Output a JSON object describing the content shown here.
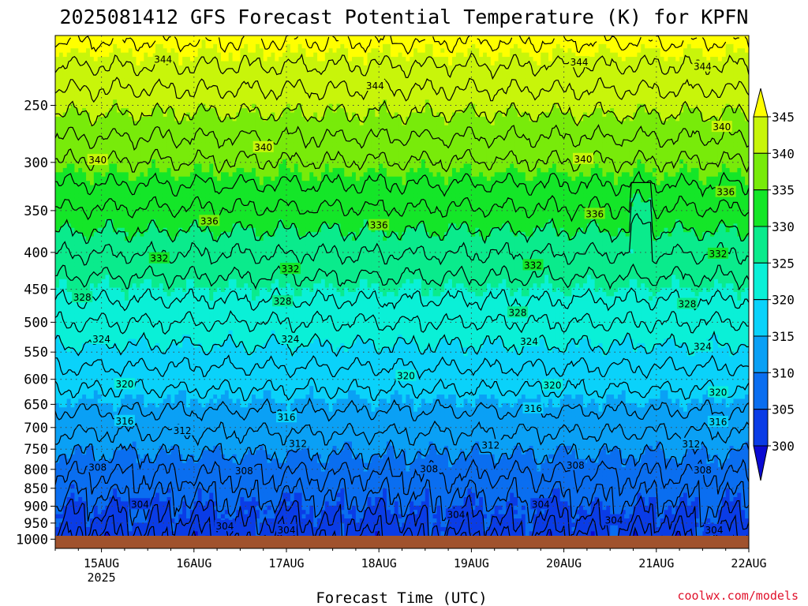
{
  "chart_data": {
    "type": "heatmap",
    "title": "2025081412 GFS Forecast Potential Temperature (K) for KPFN",
    "xlabel": "Forecast Time (UTC)",
    "ylabel": "",
    "x_ticks": [
      "15AUG",
      "16AUG",
      "17AUG",
      "18AUG",
      "19AUG",
      "20AUG",
      "21AUG",
      "22AUG"
    ],
    "x_tick_sub": "2025",
    "y_ticks": [
      250,
      300,
      350,
      400,
      450,
      500,
      550,
      600,
      650,
      700,
      750,
      800,
      850,
      900,
      950,
      1000
    ],
    "y_scale": "log",
    "y_range_hPa": [
      1030,
      200
    ],
    "x_range_hours_from_15AUG00": [
      -12,
      168
    ],
    "grid": true,
    "colorbar": {
      "levels": [
        300,
        305,
        310,
        315,
        320,
        325,
        330,
        335,
        340,
        345
      ],
      "colors": [
        "#0a0ad2",
        "#0a3ce6",
        "#0a6ef0",
        "#0aa0f5",
        "#0ad2fa",
        "#0af0d7",
        "#0aeb8c",
        "#14e628",
        "#78eb0a",
        "#c8f50a",
        "#ffff00"
      ],
      "labels": [
        "345",
        "340",
        "335",
        "330",
        "325",
        "320",
        "315",
        "310",
        "305",
        "300"
      ]
    },
    "isotherm_interval_K": 2,
    "contour_labels": [
      {
        "value": "344",
        "t": 16,
        "p": 216
      },
      {
        "value": "344",
        "t": 71,
        "p": 235
      },
      {
        "value": "344",
        "t": 124,
        "p": 218
      },
      {
        "value": "344",
        "t": 156,
        "p": 221
      },
      {
        "value": "340",
        "t": 42,
        "p": 286
      },
      {
        "value": "340",
        "t": -1,
        "p": 298
      },
      {
        "value": "340",
        "t": 125,
        "p": 297
      },
      {
        "value": "340",
        "t": 161,
        "p": 268
      },
      {
        "value": "336",
        "t": 28,
        "p": 362
      },
      {
        "value": "336",
        "t": 72,
        "p": 367
      },
      {
        "value": "336",
        "t": 128,
        "p": 354
      },
      {
        "value": "336",
        "t": 162,
        "p": 330
      },
      {
        "value": "332",
        "t": 15,
        "p": 408
      },
      {
        "value": "332",
        "t": 49,
        "p": 422
      },
      {
        "value": "332",
        "t": 112,
        "p": 417
      },
      {
        "value": "332",
        "t": 160,
        "p": 402
      },
      {
        "value": "328",
        "t": -5,
        "p": 462
      },
      {
        "value": "328",
        "t": 47,
        "p": 468
      },
      {
        "value": "328",
        "t": 108,
        "p": 485
      },
      {
        "value": "328",
        "t": 152,
        "p": 472
      },
      {
        "value": "324",
        "t": 0,
        "p": 528
      },
      {
        "value": "324",
        "t": 49,
        "p": 528
      },
      {
        "value": "324",
        "t": 111,
        "p": 532
      },
      {
        "value": "324",
        "t": 156,
        "p": 541
      },
      {
        "value": "320",
        "t": 6,
        "p": 610
      },
      {
        "value": "320",
        "t": 79,
        "p": 594
      },
      {
        "value": "320",
        "t": 117,
        "p": 612
      },
      {
        "value": "320",
        "t": 160,
        "p": 626
      },
      {
        "value": "316",
        "t": 6,
        "p": 686
      },
      {
        "value": "316",
        "t": 48,
        "p": 678
      },
      {
        "value": "316",
        "t": 112,
        "p": 659
      },
      {
        "value": "316",
        "t": 160,
        "p": 688
      },
      {
        "value": "312",
        "t": 21,
        "p": 707
      },
      {
        "value": "312",
        "t": 51,
        "p": 737
      },
      {
        "value": "312",
        "t": 101,
        "p": 741
      },
      {
        "value": "312",
        "t": 153,
        "p": 738
      },
      {
        "value": "308",
        "t": -1,
        "p": 795
      },
      {
        "value": "308",
        "t": 37,
        "p": 804
      },
      {
        "value": "308",
        "t": 85,
        "p": 799
      },
      {
        "value": "308",
        "t": 123,
        "p": 790
      },
      {
        "value": "308",
        "t": 156,
        "p": 802
      },
      {
        "value": "304",
        "t": 10,
        "p": 895
      },
      {
        "value": "304",
        "t": 32,
        "p": 960
      },
      {
        "value": "304",
        "t": 48,
        "p": 972
      },
      {
        "value": "304",
        "t": 92,
        "p": 925
      },
      {
        "value": "304",
        "t": 114,
        "p": 895
      },
      {
        "value": "304",
        "t": 133,
        "p": 942
      },
      {
        "value": "304",
        "t": 159,
        "p": 972
      }
    ],
    "credit": "coolwx.com/models"
  }
}
